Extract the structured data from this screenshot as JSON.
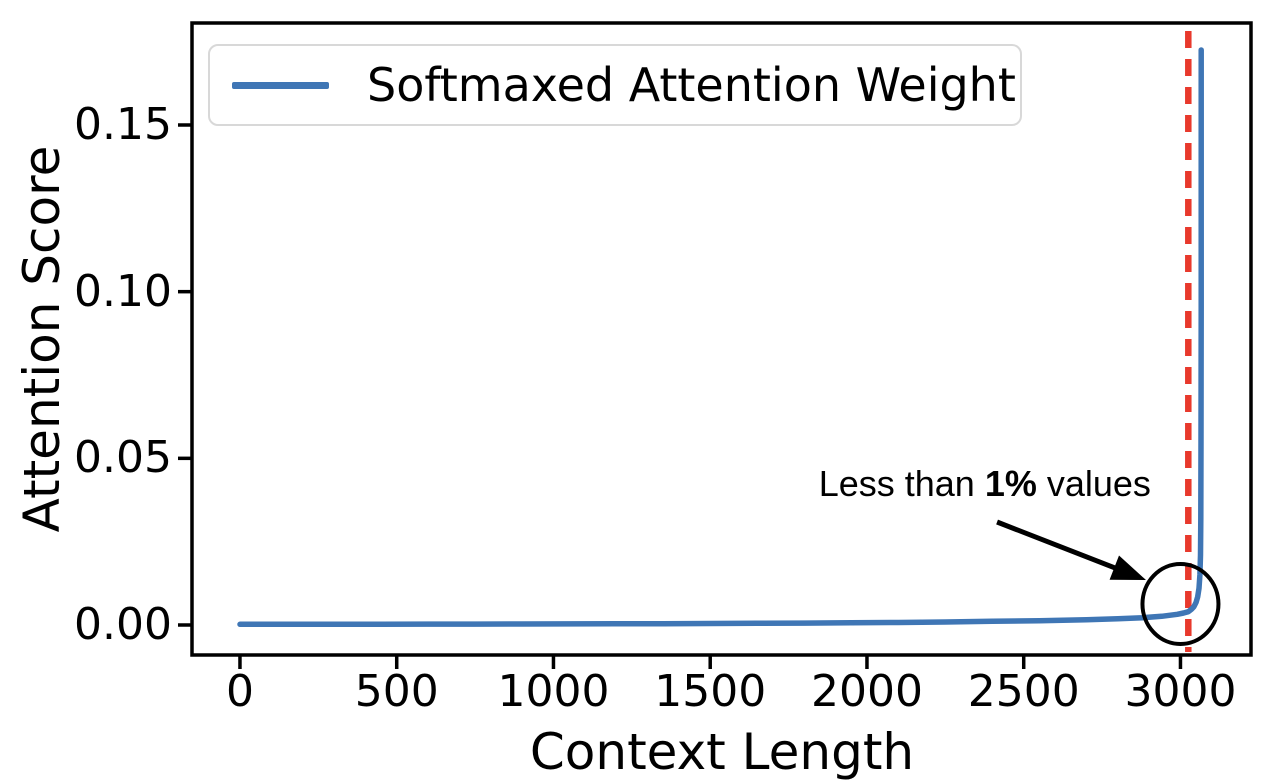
{
  "figure": {
    "background": "#ffffff",
    "frame_color": "#000000"
  },
  "chart_data": {
    "type": "line",
    "title": "",
    "xlabel": "Context Length",
    "ylabel": "Attention Score",
    "xlim": [
      -153,
      3225
    ],
    "ylim": [
      -0.009,
      0.1806
    ],
    "xticks": [
      0,
      500,
      1000,
      1500,
      2000,
      2500,
      3000
    ],
    "yticks": [
      "0.00",
      "0.05",
      "0.10",
      "0.15"
    ],
    "grid": false,
    "legend": {
      "position": "upper left",
      "entries": [
        {
          "label": "Softmaxed Attention Weight",
          "color": "#3f76b5"
        }
      ]
    },
    "series": [
      {
        "name": "Softmaxed Attention Weight",
        "color": "#3f76b5",
        "points": [
          [
            0,
            0.0002
          ],
          [
            150,
            0.0002
          ],
          [
            300,
            0.00022
          ],
          [
            450,
            0.00024
          ],
          [
            600,
            0.00026
          ],
          [
            750,
            0.00028
          ],
          [
            900,
            0.0003
          ],
          [
            1050,
            0.00033
          ],
          [
            1200,
            0.00036
          ],
          [
            1350,
            0.0004
          ],
          [
            1500,
            0.00045
          ],
          [
            1650,
            0.0005
          ],
          [
            1800,
            0.00058
          ],
          [
            1950,
            0.00066
          ],
          [
            2100,
            0.00076
          ],
          [
            2250,
            0.0009
          ],
          [
            2400,
            0.0011
          ],
          [
            2550,
            0.0013
          ],
          [
            2700,
            0.0016
          ],
          [
            2800,
            0.0019
          ],
          [
            2880,
            0.0022
          ],
          [
            2940,
            0.0026
          ],
          [
            2990,
            0.0032
          ],
          [
            3010,
            0.0036
          ],
          [
            3025,
            0.004
          ],
          [
            3035,
            0.0047
          ],
          [
            3043,
            0.0055
          ],
          [
            3050,
            0.0068
          ],
          [
            3055,
            0.0085
          ],
          [
            3059,
            0.011
          ],
          [
            3062,
            0.015
          ],
          [
            3064,
            0.021
          ],
          [
            3065,
            0.032
          ],
          [
            3065.5,
            0.055
          ],
          [
            3066,
            0.095
          ],
          [
            3066,
            0.135
          ],
          [
            3066,
            0.1725
          ]
        ]
      }
    ],
    "vline": {
      "x": 3025,
      "color": "#e8392c",
      "style": "dashed"
    },
    "annotation": {
      "prefix": "Less than ",
      "bold_part": "1%",
      "suffix": " values",
      "full_text": "Less than 1% values",
      "text_x": 2376,
      "text_y": 0.0423,
      "arrow_from": [
        2415,
        0.0309
      ],
      "arrow_to": [
        2890,
        0.0135
      ],
      "circle": {
        "x": 3000,
        "y": 0.0063
      }
    }
  }
}
